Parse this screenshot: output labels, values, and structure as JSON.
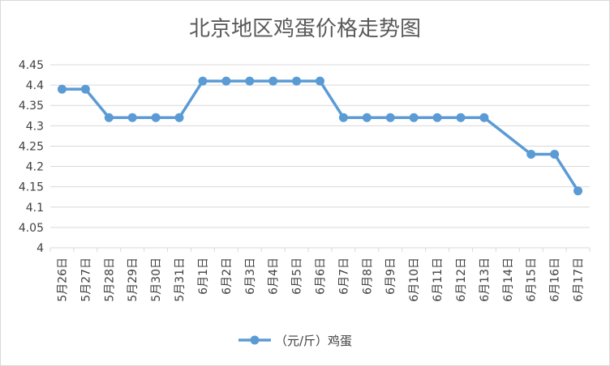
{
  "chart_data": {
    "type": "line",
    "title": "北京地区鸡蛋价格走势图",
    "categories": [
      "5月26日",
      "5月27日",
      "5月28日",
      "5月29日",
      "5月30日",
      "5月31日",
      "6月1日",
      "6月2日",
      "6月3日",
      "6月4日",
      "6月5日",
      "6月6日",
      "6月7日",
      "6月8日",
      "6月9日",
      "6月10日",
      "6月11日",
      "6月12日",
      "6月13日",
      "6月14日",
      "6月15日",
      "6月16日",
      "6月17日"
    ],
    "series": [
      {
        "name": "（元/斤）鸡蛋",
        "values": [
          4.39,
          4.39,
          4.32,
          4.32,
          4.32,
          4.32,
          4.41,
          4.41,
          4.41,
          4.41,
          4.41,
          4.41,
          4.32,
          4.32,
          4.32,
          4.32,
          4.32,
          4.32,
          4.32,
          null,
          4.23,
          4.23,
          4.14
        ]
      }
    ],
    "yticks": [
      "4",
      "4.05",
      "4.1",
      "4.15",
      "4.2",
      "4.25",
      "4.3",
      "4.35",
      "4.4",
      "4.45"
    ],
    "ylim": [
      4.0,
      4.45
    ],
    "grid": true,
    "legend": "bottom",
    "color": "#5b9bd5"
  }
}
